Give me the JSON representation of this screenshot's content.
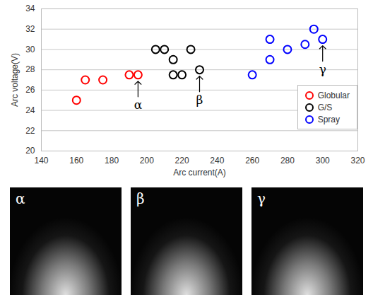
{
  "chart_data": {
    "type": "scatter",
    "x_label": "Arc current(A)",
    "y_label": "Arc voltage(V)",
    "xlim": [
      140,
      320
    ],
    "xticks": [
      140,
      160,
      180,
      200,
      220,
      240,
      260,
      280,
      300,
      320
    ],
    "ylim": [
      20,
      34
    ],
    "yticks": [
      20,
      22,
      24,
      26,
      28,
      30,
      32,
      34
    ],
    "grid": true,
    "legend": "right",
    "series": [
      {
        "name": "Globular",
        "color": "#ff0000",
        "marker": "circle",
        "x": [
          160,
          165,
          175,
          190,
          195
        ],
        "values": [
          25,
          27,
          27,
          27.5,
          27.5
        ]
      },
      {
        "name": "G/S",
        "color": "#000000",
        "marker": "circle",
        "x": [
          205,
          210,
          215,
          215,
          220,
          225,
          230
        ],
        "values": [
          30,
          30,
          29,
          27.5,
          27.5,
          30,
          28
        ]
      },
      {
        "name": "Spray",
        "color": "#0000ff",
        "marker": "circle",
        "x": [
          260,
          270,
          270,
          280,
          290,
          295,
          300
        ],
        "values": [
          27.5,
          31,
          29,
          30,
          30.5,
          32,
          31
        ]
      }
    ],
    "annotations": [
      {
        "text": "α",
        "x": 195,
        "y": 27.5
      },
      {
        "text": "β",
        "x": 230,
        "y": 28
      },
      {
        "text": "γ",
        "x": 300,
        "y": 31
      }
    ]
  },
  "images": [
    {
      "label": "α"
    },
    {
      "label": "β"
    },
    {
      "label": "γ"
    }
  ]
}
